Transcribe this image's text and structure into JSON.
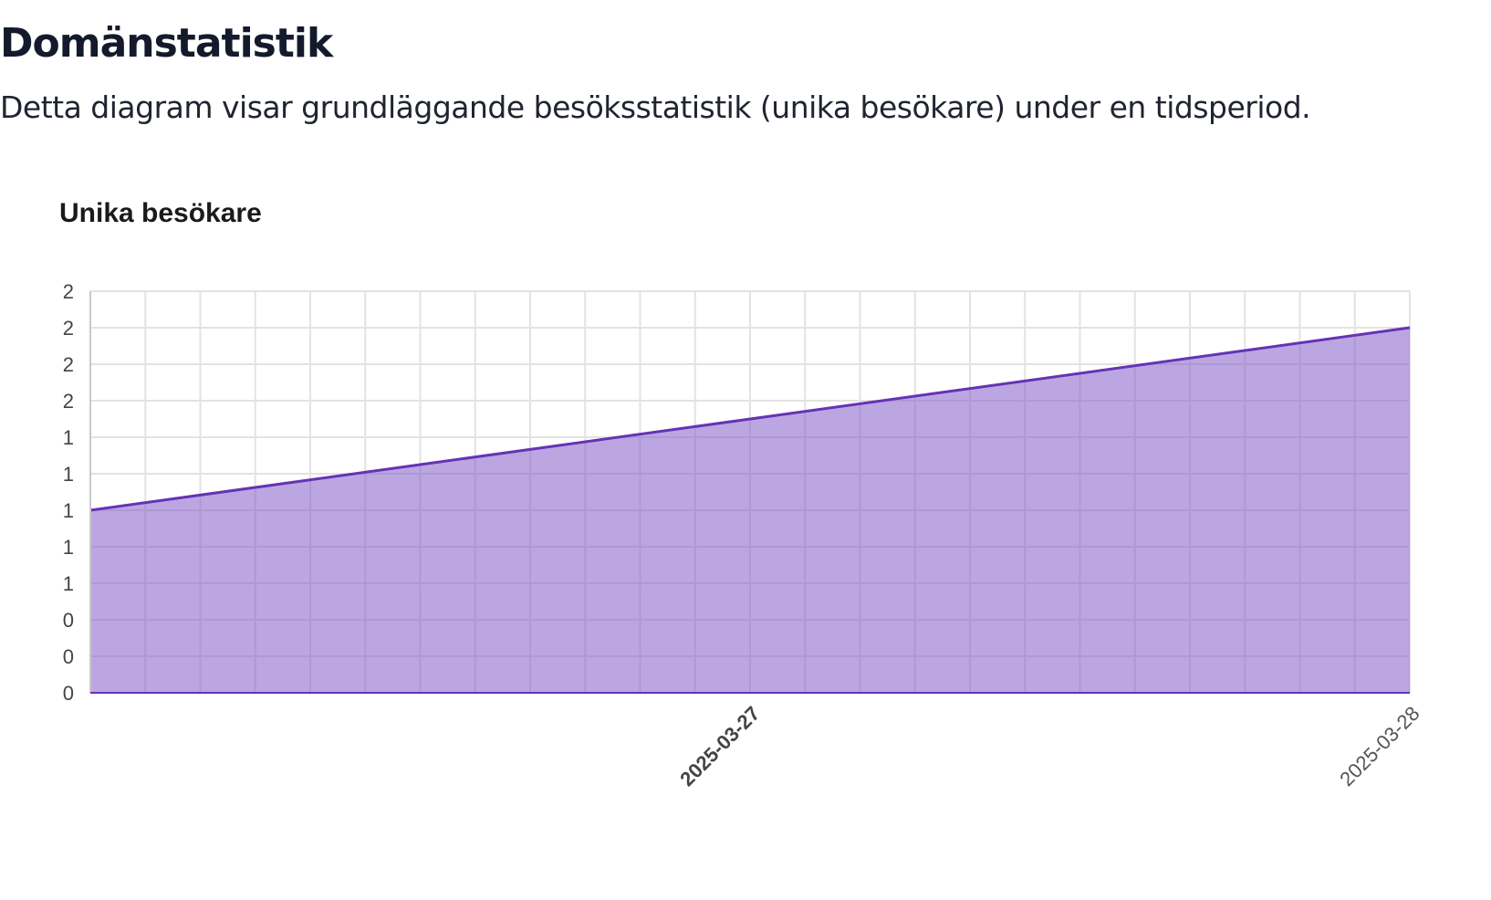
{
  "page": {
    "title": "Domänstatistik",
    "description": "Detta diagram visar grundläggande besöksstatistik (unika besökare) under en tidsperiod."
  },
  "colors": {
    "series_line": "#6533b4",
    "series_fill": "#bba6e2",
    "grid": "#e3e3e3",
    "title_text": "#131a2b"
  },
  "chart_data": {
    "type": "area",
    "title": "Unika besökare",
    "xlabel": "",
    "ylabel": "",
    "x_range": [
      "2025-03-26",
      "2025-03-28"
    ],
    "ylim": [
      0,
      2.2
    ],
    "y_ticks": [
      0,
      0.2,
      0.4,
      0.6,
      0.8,
      1.0,
      1.2,
      1.4,
      1.6,
      1.8,
      2.0,
      2.2
    ],
    "y_tick_labels": [
      "0",
      "0",
      "0",
      "1",
      "1",
      "1",
      "1",
      "1",
      "2",
      "2",
      "2",
      "2"
    ],
    "x_tick_labels": [
      {
        "date": "2025-03-27",
        "label": "2025-03-27",
        "bold": true
      },
      {
        "date": "2025-03-28",
        "label": "2025-03-28",
        "bold": false
      }
    ],
    "grid": true,
    "legend": "none",
    "series": [
      {
        "x": [
          "2025-03-26",
          "2025-03-28"
        ],
        "values": [
          1,
          2
        ]
      }
    ]
  }
}
